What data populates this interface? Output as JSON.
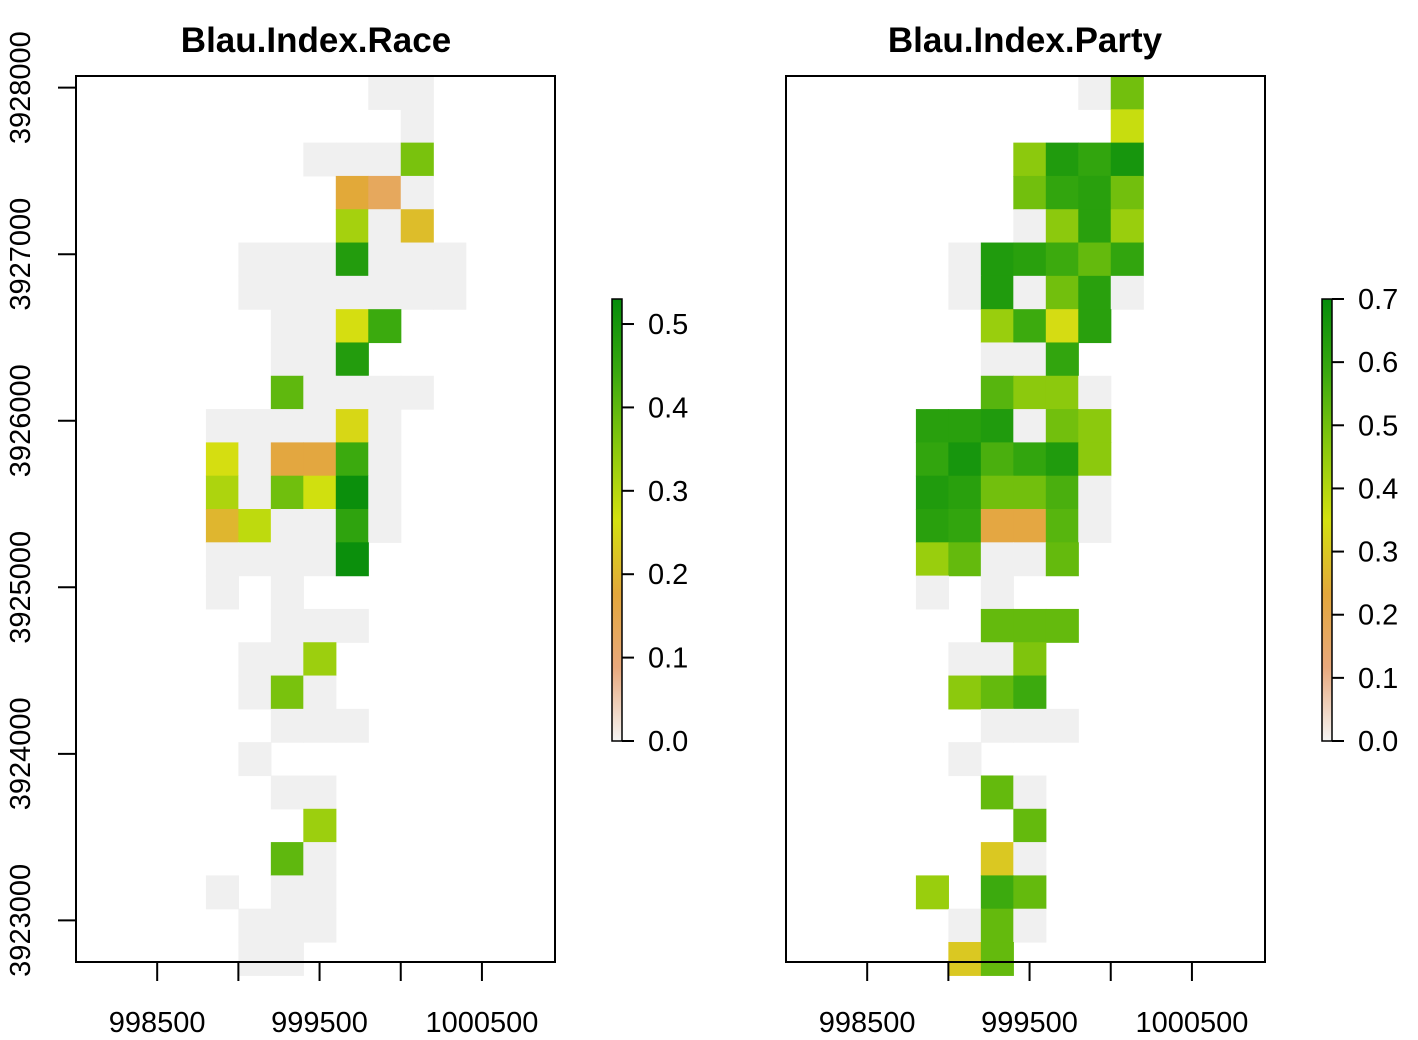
{
  "colors": {
    "na_cell": "#f0f0f0",
    "axis": "#000000",
    "colorbar_stops": [
      "#f5f5f5",
      "#e8a87c",
      "#e3a73b",
      "#d4e10f",
      "#88c80d",
      "#3aa90e",
      "#058c0c"
    ]
  },
  "chart_data": [
    {
      "type": "heatmap",
      "title": "Blau.Index.Race",
      "xlim": [
        998000,
        1000950
      ],
      "ylim": [
        3922750,
        3928070
      ],
      "x_ticks": [
        "998500",
        "999500",
        "1000500"
      ],
      "x_tick_values": [
        998500,
        999000,
        999500,
        1000000,
        1000500
      ],
      "y_ticks": [
        "3923000",
        "3924000",
        "3925000",
        "3926000",
        "3927000",
        "3928000"
      ],
      "y_tick_values": [
        3923000,
        3924000,
        3925000,
        3926000,
        3927000,
        3928000
      ],
      "colorbar": {
        "min": 0.0,
        "max": 0.53,
        "ticks": [
          "0.0",
          "0.1",
          "0.2",
          "0.3",
          "0.4",
          "0.5"
        ],
        "tick_values": [
          0,
          0.1,
          0.2,
          0.3,
          0.4,
          0.5
        ]
      },
      "grid": {
        "cell_size": 200,
        "x0": 998800,
        "top": 3928070
      },
      "rows": [
        {
          "c": 5,
          "v": [
            0,
            0
          ]
        },
        {
          "c": 6,
          "v": [
            0
          ]
        },
        {
          "c": 3,
          "v": [
            0,
            0,
            0,
            0.37
          ]
        },
        {
          "c": 4,
          "v": [
            0.18,
            0.13,
            0
          ]
        },
        {
          "c": 4,
          "v": [
            0.32,
            0,
            0.21
          ]
        },
        {
          "c": 1,
          "v": [
            0,
            0,
            0,
            0.48,
            0,
            0,
            0
          ]
        },
        {
          "c": 1,
          "v": [
            0,
            0,
            0,
            0,
            0,
            0,
            0
          ]
        },
        {
          "c": 2,
          "v": [
            0,
            0,
            0.26,
            0.44
          ]
        },
        {
          "c": 2,
          "v": [
            0,
            0,
            0.48
          ]
        },
        {
          "c": 2,
          "v": [
            0.4,
            0,
            0,
            0,
            0
          ]
        },
        {
          "c": 0,
          "v": [
            0,
            0,
            0,
            0,
            0.25,
            0
          ]
        },
        {
          "c": 0,
          "v": [
            0.26,
            0,
            0.17,
            0.17,
            0.44,
            0
          ]
        },
        {
          "c": 0,
          "v": [
            0.31,
            0,
            0.38,
            0.27,
            0.52,
            0
          ]
        },
        {
          "c": 0,
          "v": [
            0.2,
            0.29,
            0,
            0,
            0.46,
            0
          ]
        },
        {
          "c": 0,
          "v": [
            0,
            0,
            0,
            0,
            0.52
          ]
        },
        {
          "c": 0,
          "v": [
            0,
            null,
            0
          ]
        },
        {
          "c": 2,
          "v": [
            0,
            0,
            0
          ]
        },
        {
          "c": 1,
          "v": [
            0,
            0,
            0.33
          ]
        },
        {
          "c": 1,
          "v": [
            0,
            0.37,
            0
          ]
        },
        {
          "c": 2,
          "v": [
            0,
            0,
            0
          ]
        },
        {
          "c": 1,
          "v": [
            0
          ]
        },
        {
          "c": 2,
          "v": [
            0,
            0
          ]
        },
        {
          "c": 3,
          "v": [
            0.33
          ]
        },
        {
          "c": 2,
          "v": [
            0.4,
            0
          ]
        },
        {
          "c": 0,
          "v": [
            0,
            null,
            0,
            0
          ]
        },
        {
          "c": 1,
          "v": [
            0,
            0,
            0
          ]
        },
        {
          "c": 1,
          "v": [
            0,
            0
          ]
        }
      ]
    },
    {
      "type": "heatmap",
      "title": "Blau.Index.Party",
      "xlim": [
        998000,
        1000950
      ],
      "ylim": [
        3922750,
        3928070
      ],
      "x_ticks": [
        "998500",
        "999500",
        "1000500"
      ],
      "x_tick_values": [
        998500,
        999000,
        999500,
        1000000,
        1000500
      ],
      "colorbar": {
        "min": 0.0,
        "max": 0.7,
        "ticks": [
          "0.0",
          "0.1",
          "0.2",
          "0.3",
          "0.4",
          "0.5",
          "0.6",
          "0.7"
        ],
        "tick_values": [
          0,
          0.1,
          0.2,
          0.3,
          0.4,
          0.5,
          0.6,
          0.7
        ]
      },
      "grid": {
        "cell_size": 200,
        "x0": 998800,
        "top": 3928070
      },
      "rows": [
        {
          "c": 5,
          "v": [
            0,
            0.5
          ]
        },
        {
          "c": 6,
          "v": [
            0.37
          ]
        },
        {
          "c": 3,
          "v": [
            0.46,
            0.64,
            0.6,
            0.66
          ]
        },
        {
          "c": 3,
          "v": [
            0.5,
            0.6,
            0.62,
            0.5
          ]
        },
        {
          "c": 3,
          "v": [
            0,
            0.46,
            0.62,
            0.44
          ]
        },
        {
          "c": 1,
          "v": [
            0,
            0.64,
            0.62,
            0.58,
            0.52,
            0.6
          ]
        },
        {
          "c": 1,
          "v": [
            0,
            0.64,
            0,
            0.5,
            0.62,
            0
          ]
        },
        {
          "c": 2,
          "v": [
            0.44,
            0.58,
            0.34,
            0.62
          ]
        },
        {
          "c": 2,
          "v": [
            0,
            0,
            0.6
          ]
        },
        {
          "c": 2,
          "v": [
            0.54,
            0.46,
            0.46,
            0
          ]
        },
        {
          "c": 0,
          "v": [
            0.62,
            0.62,
            0.64,
            0,
            0.5,
            0.46
          ]
        },
        {
          "c": 0,
          "v": [
            0.6,
            0.66,
            0.56,
            0.6,
            0.64,
            0.46
          ]
        },
        {
          "c": 0,
          "v": [
            0.64,
            0.62,
            0.5,
            0.5,
            0.56,
            0
          ]
        },
        {
          "c": 0,
          "v": [
            0.62,
            0.6,
            0.22,
            0.22,
            0.54,
            0
          ]
        },
        {
          "c": 0,
          "v": [
            0.44,
            0.52,
            0,
            0,
            0.52
          ]
        },
        {
          "c": 0,
          "v": [
            0,
            null,
            0
          ]
        },
        {
          "c": 2,
          "v": [
            0.52,
            0.52,
            0.52
          ]
        },
        {
          "c": 1,
          "v": [
            0,
            0,
            0.48
          ]
        },
        {
          "c": 1,
          "v": [
            0.46,
            0.52,
            0.58
          ]
        },
        {
          "c": 2,
          "v": [
            0,
            0,
            0
          ]
        },
        {
          "c": 1,
          "v": [
            0
          ]
        },
        {
          "c": 2,
          "v": [
            0.52,
            0
          ]
        },
        {
          "c": 3,
          "v": [
            0.52
          ]
        },
        {
          "c": 2,
          "v": [
            0.3,
            0
          ]
        },
        {
          "c": 0,
          "v": [
            0.44,
            null,
            0.58,
            0.52
          ]
        },
        {
          "c": 1,
          "v": [
            0,
            0.52,
            0
          ]
        },
        {
          "c": 1,
          "v": [
            0.3,
            0.52
          ]
        }
      ]
    }
  ]
}
